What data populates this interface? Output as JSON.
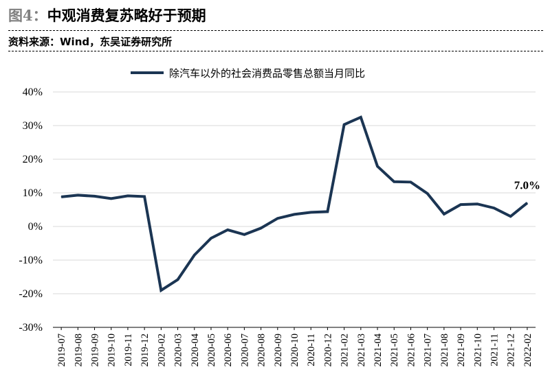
{
  "figure": {
    "label": "图4：",
    "title": "中观消费复苏略好于预期",
    "source": "资料来源：Wind，东吴证券研究所"
  },
  "colors": {
    "line": "#1b3553",
    "grid": "#d9d9d9",
    "axis": "#000000"
  },
  "chart_data": {
    "type": "line",
    "categories": [
      "2019-07",
      "2019-08",
      "2019-09",
      "2019-10",
      "2019-11",
      "2019-12",
      "2020-02",
      "2020-03",
      "2020-04",
      "2020-05",
      "2020-06",
      "2020-07",
      "2020-08",
      "2020-09",
      "2020-10",
      "2020-11",
      "2020-12",
      "2021-02",
      "2021-03",
      "2021-04",
      "2021-05",
      "2021-06",
      "2021-07",
      "2021-08",
      "2021-09",
      "2021-10",
      "2021-11",
      "2021-12",
      "2022-02"
    ],
    "series": [
      {
        "name": "除汽车以外的社会消费品零售总额当月同比",
        "values": [
          8.8,
          9.3,
          9.0,
          8.3,
          9.1,
          8.9,
          -19.0,
          -15.8,
          -8.5,
          -3.5,
          -1.0,
          -2.4,
          -0.5,
          2.4,
          3.6,
          4.2,
          4.4,
          30.3,
          32.5,
          17.9,
          13.3,
          13.2,
          9.8,
          3.7,
          6.5,
          6.7,
          5.5,
          3.0,
          7.0
        ]
      }
    ],
    "yticks": [
      "40%",
      "30%",
      "20%",
      "10%",
      "0%",
      "-10%",
      "-20%",
      "-30%"
    ],
    "ylim": [
      -30,
      40
    ],
    "grid": true,
    "legend_position": "top",
    "annotation": {
      "text": "7.0%",
      "category": "2022-02",
      "value": 7.0
    }
  }
}
